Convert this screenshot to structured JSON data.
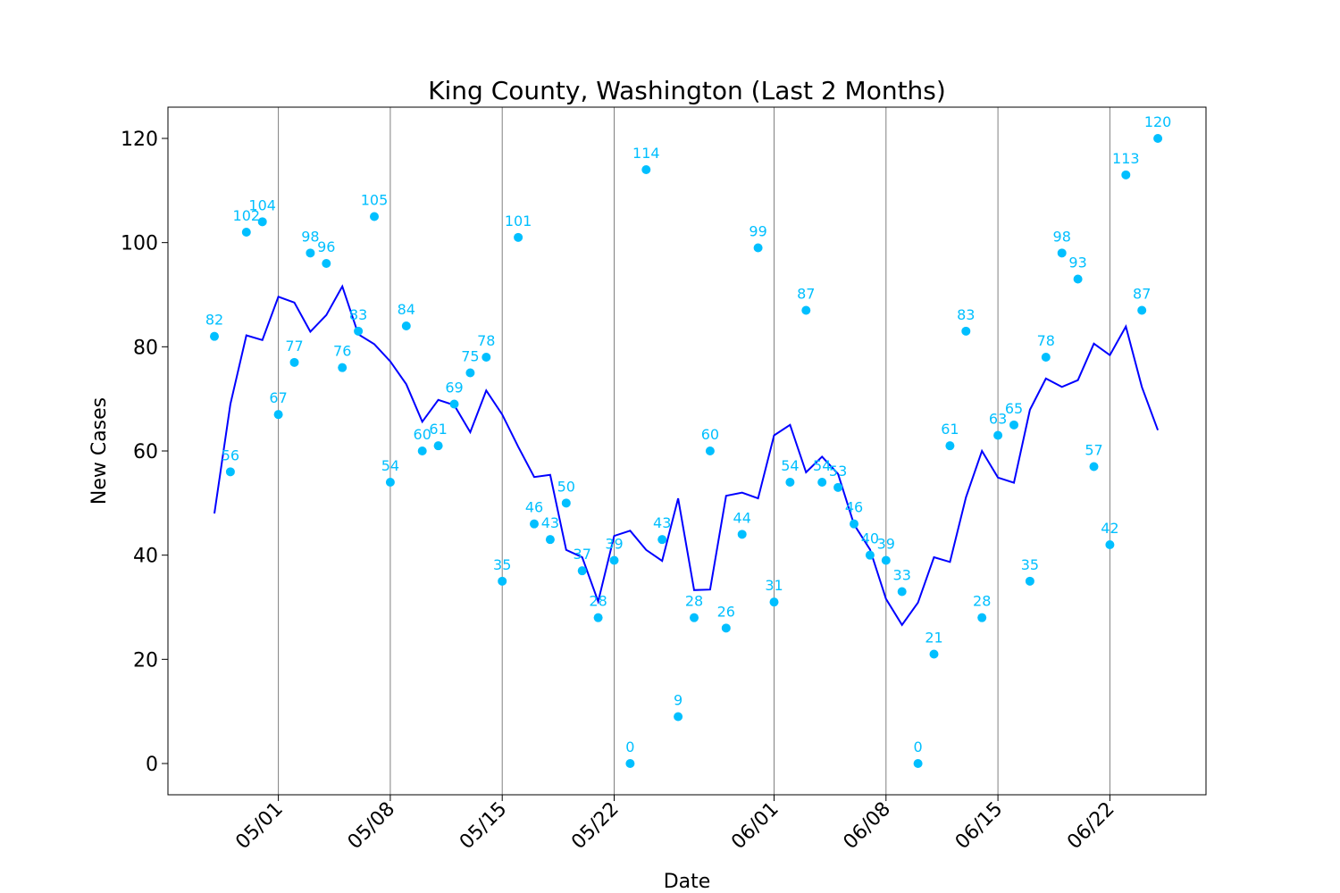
{
  "chart_data": {
    "type": "line",
    "title": "King County, Washington (Last 2 Months)",
    "xlabel": "Date",
    "ylabel": "New Cases",
    "x": [
      "04/27",
      "04/28",
      "04/29",
      "04/30",
      "05/01",
      "05/02",
      "05/03",
      "05/04",
      "05/05",
      "05/06",
      "05/07",
      "05/08",
      "05/09",
      "05/10",
      "05/11",
      "05/12",
      "05/13",
      "05/14",
      "05/15",
      "05/16",
      "05/17",
      "05/18",
      "05/19",
      "05/20",
      "05/21",
      "05/22",
      "05/23",
      "05/24",
      "05/25",
      "05/26",
      "05/27",
      "05/28",
      "05/29",
      "05/30",
      "05/31",
      "06/01",
      "06/02",
      "06/03",
      "06/04",
      "06/05",
      "06/06",
      "06/07",
      "06/08",
      "06/09",
      "06/10",
      "06/11",
      "06/12",
      "06/13",
      "06/14",
      "06/15",
      "06/16",
      "06/17",
      "06/18",
      "06/19",
      "06/20",
      "06/21",
      "06/22",
      "06/23",
      "06/24",
      "06/25"
    ],
    "series": [
      {
        "type": "scatter",
        "color": "#00bfff",
        "values": [
          82,
          56,
          102,
          104,
          67,
          77,
          98,
          96,
          76,
          83,
          105,
          54,
          84,
          60,
          61,
          69,
          75,
          78,
          35,
          101,
          46,
          43,
          50,
          37,
          28,
          39,
          0,
          114,
          43,
          9,
          28,
          60,
          26,
          44,
          99,
          31,
          54,
          87,
          54,
          53,
          46,
          40,
          39,
          33,
          0,
          21,
          61,
          83,
          28,
          63,
          65,
          35,
          78,
          98,
          93,
          57,
          42,
          113,
          87,
          120
        ]
      },
      {
        "type": "line",
        "color": "#0000ff",
        "values": [
          48,
          69,
          82.2,
          81.3,
          89.6,
          88.5,
          82.9,
          86.1,
          91.6,
          82.4,
          80.5,
          77.2,
          72.8,
          65.6,
          69.8,
          68.8,
          63.6,
          71.6,
          67,
          60.8,
          55,
          55.4,
          41,
          39.6,
          31.1,
          43.7,
          44.7,
          41,
          38.9,
          50.9,
          33.3,
          33.4,
          51.4,
          52,
          50.9,
          63,
          65,
          55.9,
          58.9,
          55.6,
          45.9,
          41.1,
          31.6,
          26.6,
          30.9,
          39.6,
          38.7,
          51.1,
          60,
          54.9,
          53.9,
          67.9,
          73.9,
          72.3,
          73.6,
          80.6,
          78.4,
          83.9,
          72.3,
          64
        ]
      }
    ],
    "show_data_labels": true,
    "xticks": [
      "05/01",
      "05/08",
      "05/15",
      "05/22",
      "06/01",
      "06/08",
      "06/15",
      "06/22"
    ],
    "yticks": [
      0,
      20,
      40,
      60,
      80,
      100,
      120
    ],
    "ylim": [
      -6,
      126
    ],
    "xgrid": true,
    "ygrid": false
  }
}
